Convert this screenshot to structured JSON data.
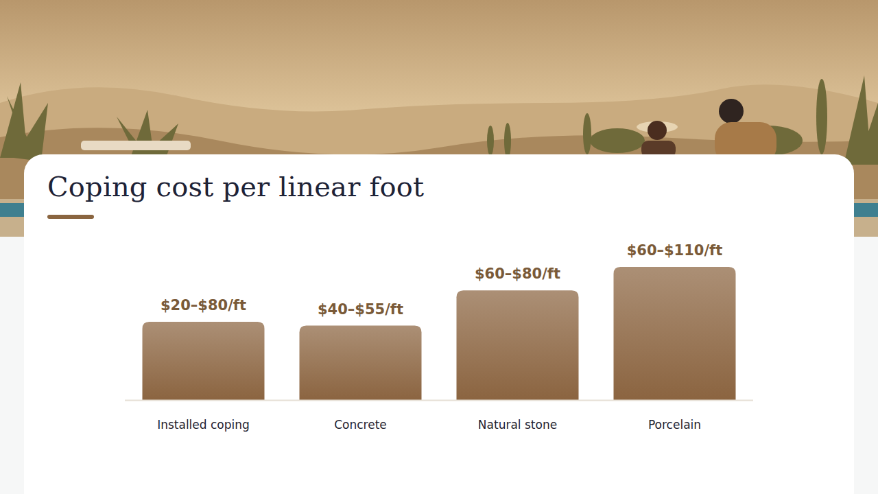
{
  "chart_data": {
    "type": "bar",
    "title": "Coping cost per linear foot",
    "categories": [
      "Installed coping",
      "Concrete",
      "Natural stone",
      "Porcelain"
    ],
    "values": [
      50,
      47.5,
      70,
      85
    ],
    "value_labels": [
      "$20–$80/ft",
      "$40–$55/ft",
      "$60–$80/ft",
      "$60–$110/ft"
    ],
    "color": "#8b6440",
    "ylim": [
      0,
      85
    ],
    "grid": false,
    "data_labels": true,
    "tick_labels": "x"
  }
}
